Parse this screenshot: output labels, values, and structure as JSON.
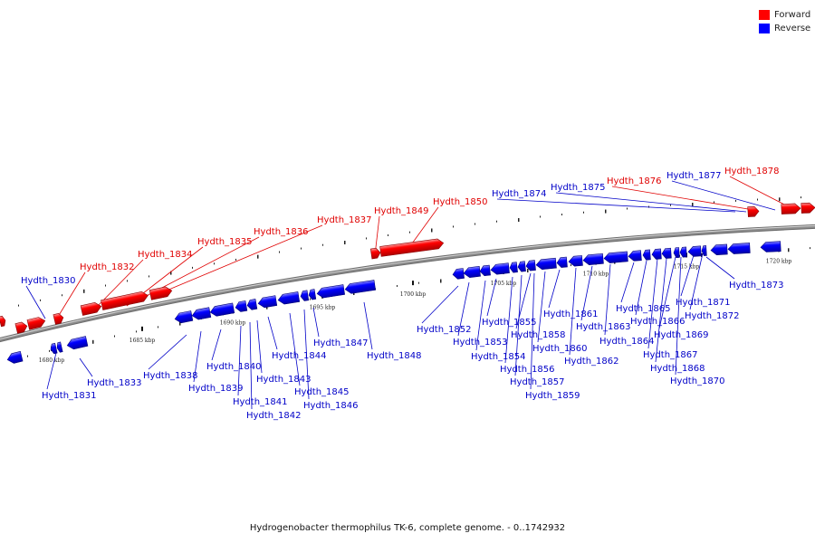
{
  "legend": {
    "forward": {
      "label": "Forward",
      "color": "#ff0000"
    },
    "reverse": {
      "label": "Reverse",
      "color": "#0000ff"
    }
  },
  "caption": "Hydrogenobacter thermophilus TK-6, complete genome. - 0..1742932",
  "backbone_color": "#8c8c8c",
  "tick_labels": [
    "1680 kbp",
    "1685 kbp",
    "1690 kbp",
    "1695 kbp",
    "1700 kbp",
    "1705 kbp",
    "1710 kbp",
    "1715 kbp",
    "1720 kbp"
  ],
  "genes_forward": [
    "Hydth_1832",
    "Hydth_1834",
    "Hydth_1835",
    "Hydth_1836",
    "Hydth_1837",
    "Hydth_1849",
    "Hydth_1850",
    "Hydth_1876",
    "Hydth_1878"
  ],
  "genes_reverse": [
    "Hydth_1830",
    "Hydth_1831",
    "Hydth_1833",
    "Hydth_1838",
    "Hydth_1839",
    "Hydth_1840",
    "Hydth_1841",
    "Hydth_1842",
    "Hydth_1843",
    "Hydth_1844",
    "Hydth_1845",
    "Hydth_1846",
    "Hydth_1847",
    "Hydth_1848",
    "Hydth_1852",
    "Hydth_1853",
    "Hydth_1854",
    "Hydth_1855",
    "Hydth_1856",
    "Hydth_1857",
    "Hydth_1858",
    "Hydth_1859",
    "Hydth_1860",
    "Hydth_1861",
    "Hydth_1862",
    "Hydth_1863",
    "Hydth_1864",
    "Hydth_1865",
    "Hydth_1866",
    "Hydth_1867",
    "Hydth_1868",
    "Hydth_1869",
    "Hydth_1870",
    "Hydth_1871",
    "Hydth_1872",
    "Hydth_1873",
    "Hydth_1874",
    "Hydth_1875",
    "Hydth_1877"
  ]
}
